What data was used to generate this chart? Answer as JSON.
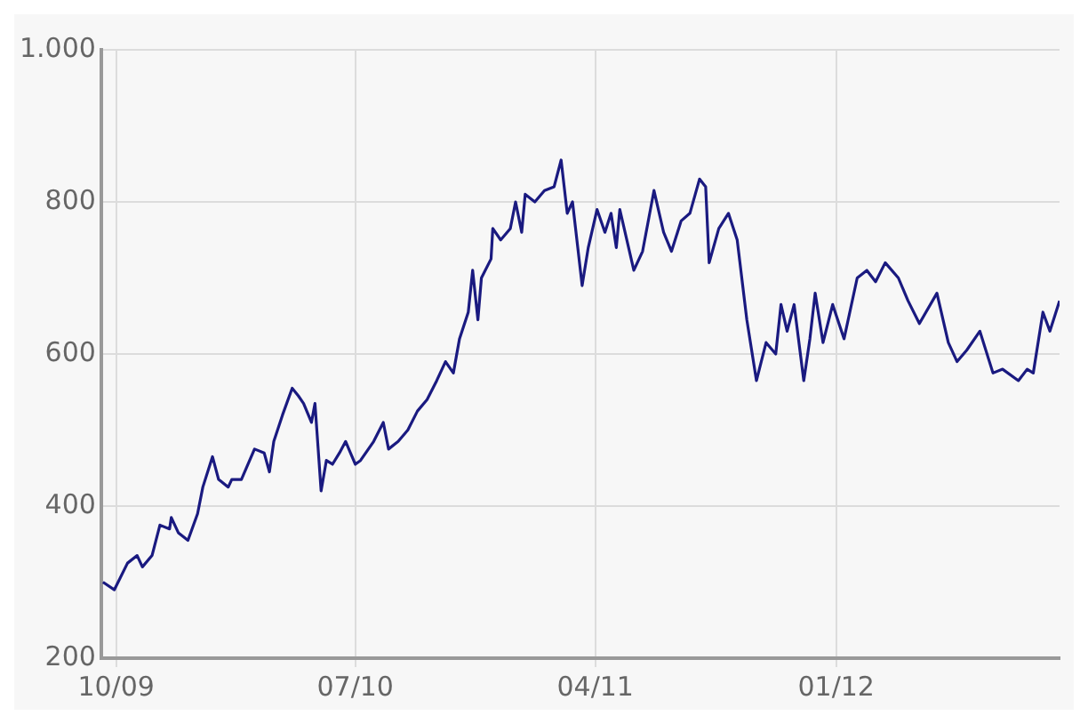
{
  "chart_data": {
    "type": "line",
    "xlim": [
      "2009-09-14",
      "2012-09-12"
    ],
    "xticks": [
      {
        "value": "2009-10-01",
        "label": "10/09"
      },
      {
        "value": "2010-07-01",
        "label": "07/10"
      },
      {
        "value": "2011-04-01",
        "label": "04/11"
      },
      {
        "value": "2012-01-01",
        "label": "01/12"
      }
    ],
    "ylim": [
      200,
      1000
    ],
    "yticks": [
      200,
      400,
      600,
      800,
      {
        "value": 1000,
        "label": "1.000"
      }
    ],
    "grid": true,
    "legend": false,
    "marker": "none",
    "line_style": "solid",
    "series": [
      {
        "color": "#1a1a80",
        "x": [
          "2009-09-16",
          "2009-09-29",
          "2009-10-14",
          "2009-10-25",
          "2009-10-31",
          "2009-11-11",
          "2009-11-20",
          "2009-12-01",
          "2009-12-03",
          "2009-12-11",
          "2009-12-22",
          "2010-01-02",
          "2010-01-08",
          "2010-01-19",
          "2010-01-26",
          "2010-02-06",
          "2010-02-10",
          "2010-02-21",
          "2010-03-08",
          "2010-03-19",
          "2010-03-25",
          "2010-03-30",
          "2010-04-09",
          "2010-04-20",
          "2010-04-27",
          "2010-05-03",
          "2010-05-12",
          "2010-05-16",
          "2010-05-23",
          "2010-05-29",
          "2010-06-05",
          "2010-06-13",
          "2010-06-20",
          "2010-07-01",
          "2010-07-07",
          "2010-07-22",
          "2010-08-02",
          "2010-08-08",
          "2010-08-19",
          "2010-08-30",
          "2010-09-10",
          "2010-09-21",
          "2010-10-02",
          "2010-10-12",
          "2010-10-21",
          "2010-10-28",
          "2010-11-07",
          "2010-11-12",
          "2010-11-18",
          "2010-11-22",
          "2010-12-03",
          "2010-12-05",
          "2010-12-14",
          "2010-12-25",
          "2010-12-31",
          "2011-01-07",
          "2011-01-11",
          "2011-01-22",
          "2011-02-02",
          "2011-02-13",
          "2011-02-21",
          "2011-02-28",
          "2011-03-06",
          "2011-03-17",
          "2011-03-24",
          "2011-04-03",
          "2011-04-12",
          "2011-04-19",
          "2011-04-25",
          "2011-04-29",
          "2011-05-15",
          "2011-05-25",
          "2011-06-07",
          "2011-06-18",
          "2011-06-27",
          "2011-07-08",
          "2011-07-18",
          "2011-07-29",
          "2011-08-05",
          "2011-08-09",
          "2011-08-20",
          "2011-08-31",
          "2011-09-10",
          "2011-09-21",
          "2011-10-02",
          "2011-10-13",
          "2011-10-24",
          "2011-10-30",
          "2011-11-06",
          "2011-11-14",
          "2011-11-25",
          "2011-12-02",
          "2011-12-08",
          "2011-12-17",
          "2011-12-28",
          "2012-01-10",
          "2012-01-25",
          "2012-02-05",
          "2012-02-15",
          "2012-02-26",
          "2012-03-12",
          "2012-03-23",
          "2012-04-05",
          "2012-04-25",
          "2012-05-08",
          "2012-05-18",
          "2012-05-29",
          "2012-06-13",
          "2012-06-28",
          "2012-07-09",
          "2012-07-27",
          "2012-08-06",
          "2012-08-13",
          "2012-08-24",
          "2012-09-01",
          "2012-09-12"
        ],
        "values": [
          300,
          290,
          325,
          335,
          320,
          335,
          375,
          370,
          385,
          365,
          355,
          390,
          425,
          465,
          435,
          425,
          435,
          435,
          475,
          470,
          445,
          485,
          520,
          555,
          545,
          535,
          510,
          535,
          420,
          460,
          455,
          470,
          485,
          455,
          460,
          485,
          510,
          475,
          485,
          500,
          525,
          540,
          565,
          590,
          575,
          620,
          655,
          710,
          645,
          700,
          725,
          765,
          750,
          765,
          800,
          760,
          810,
          800,
          815,
          820,
          855,
          785,
          800,
          690,
          740,
          790,
          760,
          785,
          740,
          790,
          710,
          735,
          815,
          760,
          735,
          775,
          785,
          830,
          820,
          720,
          765,
          785,
          750,
          645,
          565,
          615,
          600,
          665,
          630,
          665,
          565,
          620,
          680,
          615,
          665,
          620,
          700,
          710,
          695,
          720,
          700,
          670,
          640,
          680,
          615,
          590,
          605,
          630,
          575,
          580,
          565,
          580,
          575,
          655,
          630,
          670
        ]
      }
    ]
  }
}
